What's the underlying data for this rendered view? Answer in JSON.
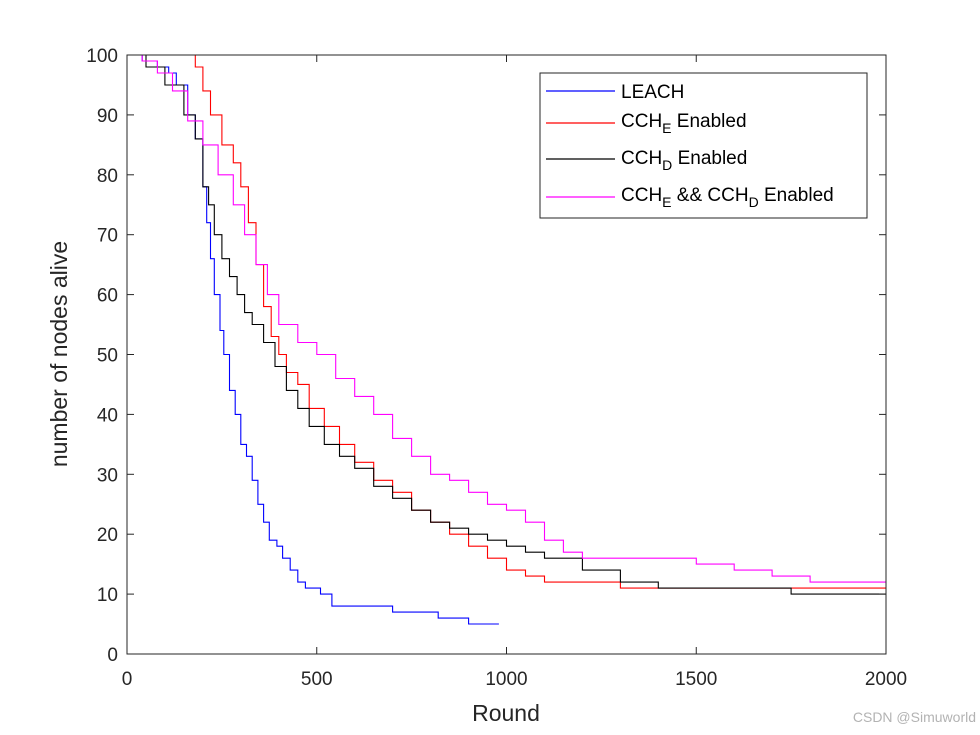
{
  "chart_data": {
    "type": "line",
    "title": "",
    "xlabel": "Round",
    "ylabel": "number of nodes alive",
    "xlim": [
      0,
      2000
    ],
    "ylim": [
      0,
      100
    ],
    "xticks": [
      0,
      500,
      1000,
      1500,
      2000
    ],
    "yticks": [
      0,
      10,
      20,
      30,
      40,
      50,
      60,
      70,
      80,
      90,
      100
    ],
    "legend_position": "top-right",
    "series": [
      {
        "name": "LEACH",
        "legend_main": "LEACH",
        "color": "#0000ff",
        "x": [
          0,
          40,
          80,
          110,
          130,
          160,
          180,
          200,
          210,
          220,
          230,
          245,
          255,
          270,
          285,
          300,
          315,
          330,
          345,
          360,
          375,
          395,
          410,
          430,
          450,
          470,
          490,
          510,
          540,
          600,
          700,
          820,
          850,
          900,
          980
        ],
        "y": [
          100,
          99,
          98,
          97,
          95,
          90,
          86,
          78,
          72,
          66,
          60,
          54,
          50,
          44,
          40,
          35,
          33,
          29,
          25,
          22,
          19,
          18,
          16,
          14,
          12,
          11,
          11,
          10,
          8,
          8,
          7,
          6,
          6,
          5,
          5
        ]
      },
      {
        "name": "CCH_E Enabled",
        "legend_main": "CCH",
        "legend_sub": "E",
        "legend_rest": " Enabled",
        "color": "#ff0000",
        "x": [
          0,
          140,
          180,
          200,
          220,
          250,
          280,
          300,
          320,
          340,
          360,
          380,
          400,
          420,
          450,
          480,
          520,
          560,
          600,
          650,
          700,
          750,
          800,
          850,
          900,
          950,
          1000,
          1050,
          1100,
          1200,
          1300,
          1500,
          1700,
          2000
        ],
        "y": [
          100,
          100,
          98,
          94,
          90,
          85,
          82,
          78,
          72,
          65,
          58,
          53,
          50,
          47,
          45,
          41,
          38,
          35,
          32,
          29,
          27,
          24,
          22,
          20,
          18,
          16,
          14,
          13,
          12,
          12,
          11,
          11,
          11,
          11
        ]
      },
      {
        "name": "CCH_D Enabled",
        "legend_main": "CCH",
        "legend_sub": "D",
        "legend_rest": " Enabled",
        "color": "#000000",
        "x": [
          0,
          50,
          100,
          150,
          180,
          200,
          215,
          230,
          250,
          270,
          290,
          310,
          330,
          360,
          390,
          420,
          450,
          480,
          520,
          560,
          600,
          650,
          700,
          750,
          800,
          850,
          900,
          950,
          1000,
          1050,
          1100,
          1150,
          1200,
          1300,
          1400,
          1600,
          1750,
          2000
        ],
        "y": [
          100,
          98,
          95,
          90,
          86,
          78,
          75,
          70,
          66,
          63,
          60,
          57,
          55,
          52,
          48,
          44,
          41,
          38,
          35,
          33,
          31,
          28,
          26,
          24,
          22,
          21,
          20,
          19,
          18,
          17,
          16,
          16,
          14,
          12,
          11,
          11,
          10,
          10
        ]
      },
      {
        "name": "CCH_E && CCH_D Enabled",
        "legend_main": "CCH",
        "legend_sub": "E",
        "legend_mid": " && CCH",
        "legend_sub2": "D",
        "legend_rest": " Enabled",
        "color": "#ff00ff",
        "x": [
          0,
          40,
          80,
          120,
          160,
          200,
          240,
          280,
          310,
          340,
          370,
          400,
          450,
          500,
          550,
          600,
          650,
          700,
          750,
          800,
          850,
          900,
          950,
          1000,
          1050,
          1100,
          1150,
          1200,
          1300,
          1400,
          1500,
          1600,
          1700,
          1800,
          2000
        ],
        "y": [
          100,
          99,
          97,
          94,
          89,
          85,
          80,
          75,
          70,
          65,
          60,
          55,
          52,
          50,
          46,
          43,
          40,
          36,
          33,
          30,
          29,
          27,
          25,
          24,
          22,
          19,
          17,
          16,
          16,
          16,
          15,
          14,
          13,
          12,
          12
        ]
      }
    ]
  },
  "watermark": "CSDN @Simuworld"
}
